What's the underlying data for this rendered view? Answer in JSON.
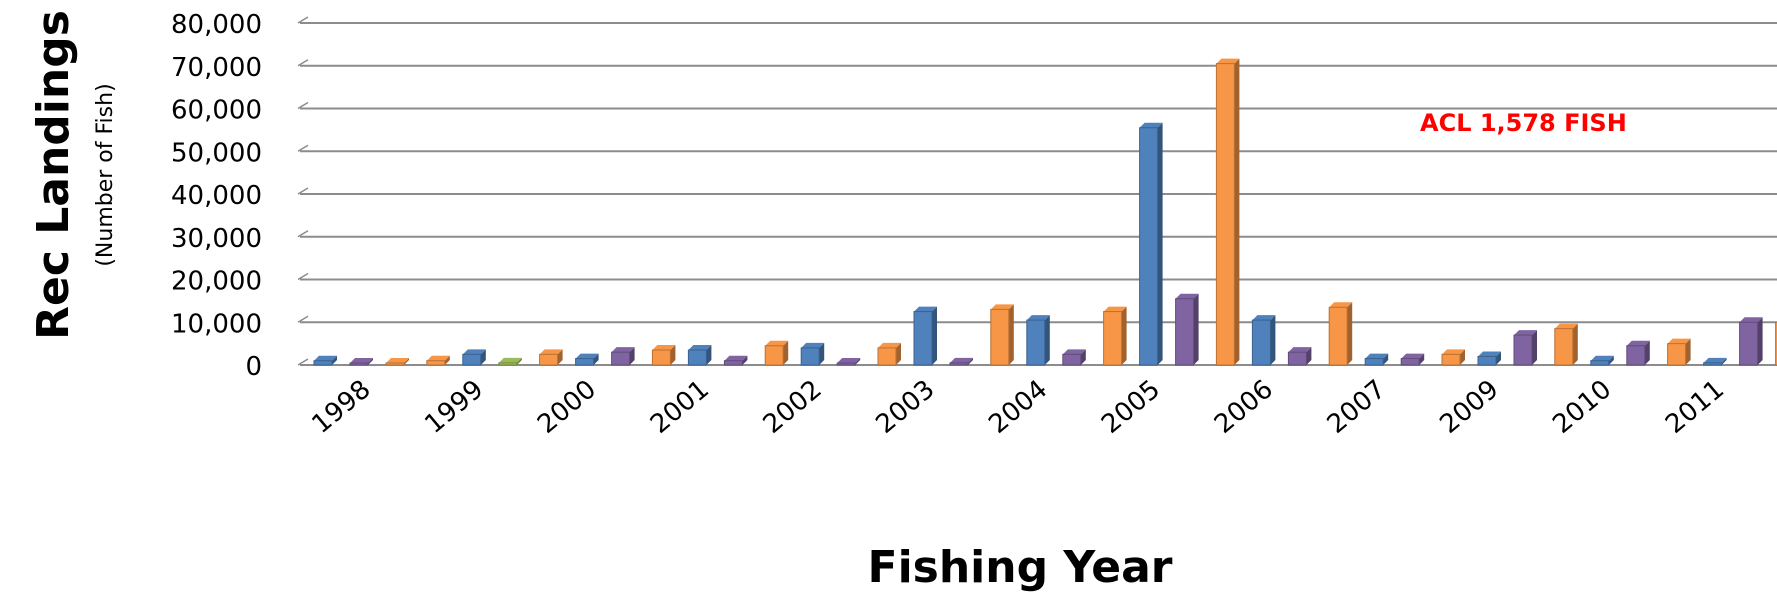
{
  "chart_data": {
    "type": "bar",
    "title": "",
    "ylabel": "Rec Landings",
    "ylabel_sub": "(Number of Fish)",
    "xlabel": "Fishing Year",
    "ylim": [
      0,
      80000
    ],
    "y_ticks": [
      0,
      10000,
      20000,
      30000,
      40000,
      50000,
      60000,
      70000,
      80000
    ],
    "y_tick_labels": [
      "0",
      "10,000",
      "20,000",
      "30,000",
      "40,000",
      "50,000",
      "60,000",
      "70,000",
      "80,000"
    ],
    "categories": [
      "1998",
      "1999",
      "2000",
      "2001",
      "2002",
      "2003",
      "2004",
      "2005",
      "2006",
      "2007",
      "2009",
      "2010",
      "2011"
    ],
    "grid": true,
    "legend": "none",
    "bars_3d": true,
    "annotation": {
      "text": "ACL 1,578 FISH",
      "color": "#ff0000",
      "placement": "upper-right"
    },
    "bars": [
      {
        "category": "1998",
        "slot": 0,
        "value": 1000,
        "color": "#4f81bd"
      },
      {
        "category": "1998",
        "slot": 1,
        "value": 0,
        "color": "#8064a2"
      },
      {
        "category": "1998",
        "slot": 2,
        "value": 0,
        "color": "#f79646"
      },
      {
        "category": "1999",
        "slot": 0,
        "value": 1000,
        "color": "#f79646"
      },
      {
        "category": "1999",
        "slot": 1,
        "value": 2500,
        "color": "#4f81bd"
      },
      {
        "category": "1999",
        "slot": 2,
        "value": 500,
        "color": "#9bbb59"
      },
      {
        "category": "2000",
        "slot": 0,
        "value": 2500,
        "color": "#f79646"
      },
      {
        "category": "2000",
        "slot": 1,
        "value": 1500,
        "color": "#4f81bd"
      },
      {
        "category": "2000",
        "slot": 2,
        "value": 3000,
        "color": "#8064a2"
      },
      {
        "category": "2001",
        "slot": 0,
        "value": 3500,
        "color": "#f79646"
      },
      {
        "category": "2001",
        "slot": 1,
        "value": 3500,
        "color": "#4f81bd"
      },
      {
        "category": "2001",
        "slot": 2,
        "value": 1000,
        "color": "#8064a2"
      },
      {
        "category": "2002",
        "slot": 0,
        "value": 4500,
        "color": "#f79646"
      },
      {
        "category": "2002",
        "slot": 1,
        "value": 4000,
        "color": "#4f81bd"
      },
      {
        "category": "2002",
        "slot": 2,
        "value": 0,
        "color": "#8064a2"
      },
      {
        "category": "2003",
        "slot": 0,
        "value": 4000,
        "color": "#f79646"
      },
      {
        "category": "2003",
        "slot": 1,
        "value": 12500,
        "color": "#4f81bd"
      },
      {
        "category": "2003",
        "slot": 2,
        "value": 500,
        "color": "#8064a2"
      },
      {
        "category": "2004",
        "slot": 0,
        "value": 13000,
        "color": "#f79646"
      },
      {
        "category": "2004",
        "slot": 1,
        "value": 10500,
        "color": "#4f81bd"
      },
      {
        "category": "2004",
        "slot": 2,
        "value": 2500,
        "color": "#8064a2"
      },
      {
        "category": "2005",
        "slot": 0,
        "value": 12500,
        "color": "#f79646"
      },
      {
        "category": "2005",
        "slot": 1,
        "value": 55500,
        "color": "#4f81bd"
      },
      {
        "category": "2005",
        "slot": 2,
        "value": 15500,
        "color": "#8064a2"
      },
      {
        "category": "2006",
        "slot": 0,
        "value": 70500,
        "color": "#f79646"
      },
      {
        "category": "2006",
        "slot": 1,
        "value": 10500,
        "color": "#4f81bd"
      },
      {
        "category": "2006",
        "slot": 2,
        "value": 3000,
        "color": "#8064a2"
      },
      {
        "category": "2007",
        "slot": 0,
        "value": 13500,
        "color": "#f79646"
      },
      {
        "category": "2007",
        "slot": 1,
        "value": 1500,
        "color": "#4f81bd"
      },
      {
        "category": "2007",
        "slot": 2,
        "value": 1500,
        "color": "#8064a2"
      },
      {
        "category": "2009",
        "slot": 0,
        "value": 2500,
        "color": "#f79646"
      },
      {
        "category": "2009",
        "slot": 1,
        "value": 2000,
        "color": "#4f81bd"
      },
      {
        "category": "2009",
        "slot": 2,
        "value": 7000,
        "color": "#8064a2"
      },
      {
        "category": "2010",
        "slot": 0,
        "value": 8500,
        "color": "#f79646"
      },
      {
        "category": "2010",
        "slot": 1,
        "value": 1000,
        "color": "#4f81bd"
      },
      {
        "category": "2010",
        "slot": 2,
        "value": 4500,
        "color": "#8064a2"
      },
      {
        "category": "2011",
        "slot": 0,
        "value": 5000,
        "color": "#f79646"
      },
      {
        "category": "2011",
        "slot": 1,
        "value": 500,
        "color": "#4f81bd"
      },
      {
        "category": "2011",
        "slot": 2,
        "value": 10000,
        "color": "#8064a2"
      },
      {
        "category": "2011",
        "slot": 3,
        "value": 10000,
        "color": "#f79646"
      }
    ]
  }
}
